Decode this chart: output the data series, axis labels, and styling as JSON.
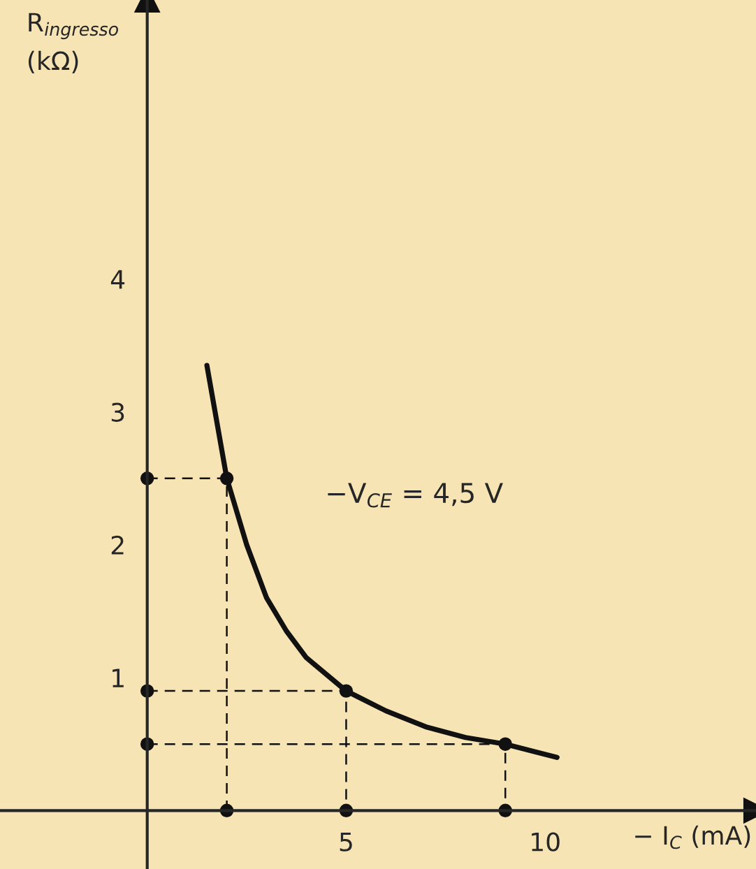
{
  "chart_data": {
    "type": "line",
    "xlabel": "− I$_{C}$ (mA)",
    "ylabel": "R$_{ingresso}$\n(kΩ)",
    "annotations": [
      "−V$_{CE}$ = 4,5 V"
    ],
    "xlim": [
      -3.7,
      15.3
    ],
    "ylim": [
      -0.44,
      6.1
    ],
    "xticks": [
      5,
      10
    ],
    "yticks": [
      1,
      2,
      3,
      4
    ],
    "grid": false,
    "legend": false,
    "series": [
      {
        "color": "#111111",
        "line_style": "solid",
        "marker": "none",
        "x": [
          1.5,
          2,
          2.5,
          3,
          3.5,
          4,
          5,
          6,
          7,
          8,
          9,
          10.3
        ],
        "values": [
          3.35,
          2.5,
          2.0,
          1.6,
          1.35,
          1.15,
          0.9,
          0.75,
          0.63,
          0.55,
          0.5,
          0.4
        ]
      },
      {
        "color": "#111111",
        "line_style": "dashed",
        "marker": "circle",
        "x": [
          0,
          2,
          2
        ],
        "values": [
          2.5,
          2.5,
          0
        ]
      },
      {
        "color": "#111111",
        "line_style": "dashed",
        "marker": "circle",
        "x": [
          0,
          5,
          5
        ],
        "values": [
          0.9,
          0.9,
          0
        ]
      },
      {
        "color": "#111111",
        "line_style": "dashed",
        "marker": "circle",
        "x": [
          0,
          9,
          9
        ],
        "values": [
          0.5,
          0.5,
          0
        ]
      }
    ]
  }
}
